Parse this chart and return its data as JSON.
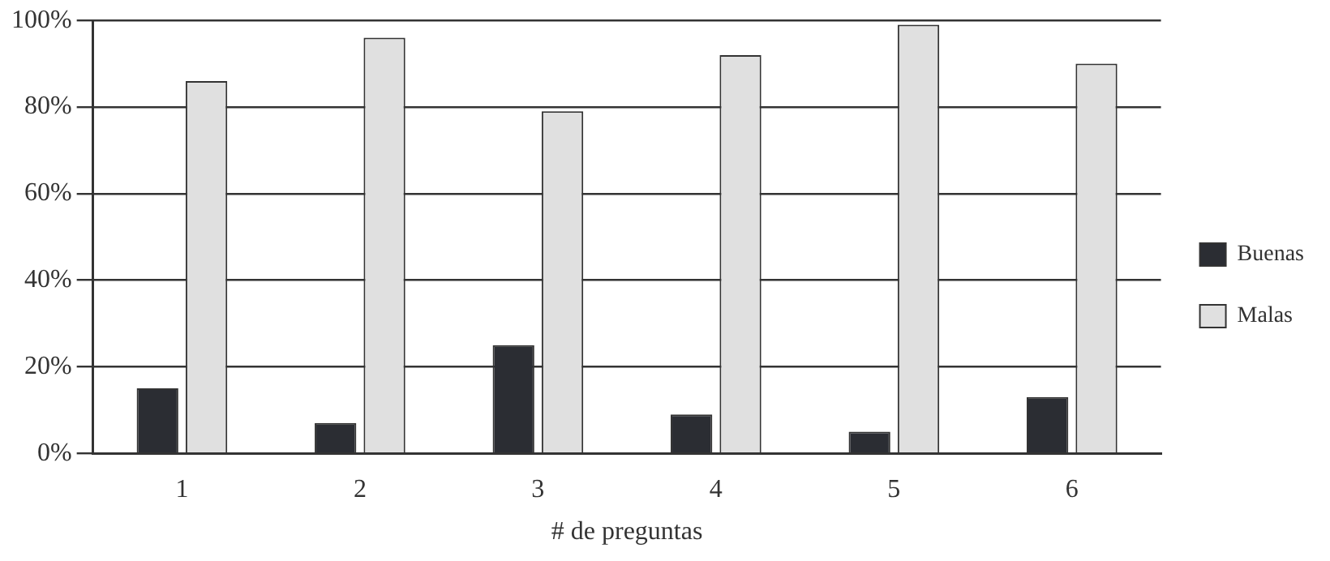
{
  "chart_data": {
    "type": "bar",
    "xlabel": "# de preguntas",
    "categories": [
      "1",
      "2",
      "3",
      "4",
      "5",
      "6"
    ],
    "series": [
      {
        "name": "Buenas",
        "color": "#2b2d33",
        "values": [
          15,
          7,
          25,
          9,
          5,
          13
        ]
      },
      {
        "name": "Malas",
        "color": "#e0e0e0",
        "values": [
          86,
          96,
          79,
          92,
          99,
          90
        ]
      }
    ],
    "ylim": [
      0,
      100
    ],
    "yticks": [
      {
        "value": 0,
        "label": "0%"
      },
      {
        "value": 20,
        "label": "20%"
      },
      {
        "value": 40,
        "label": "40%"
      },
      {
        "value": 60,
        "label": "60%"
      },
      {
        "value": 80,
        "label": "80%"
      },
      {
        "value": 100,
        "label": "100%"
      }
    ],
    "grid": "y",
    "legend": "right"
  }
}
